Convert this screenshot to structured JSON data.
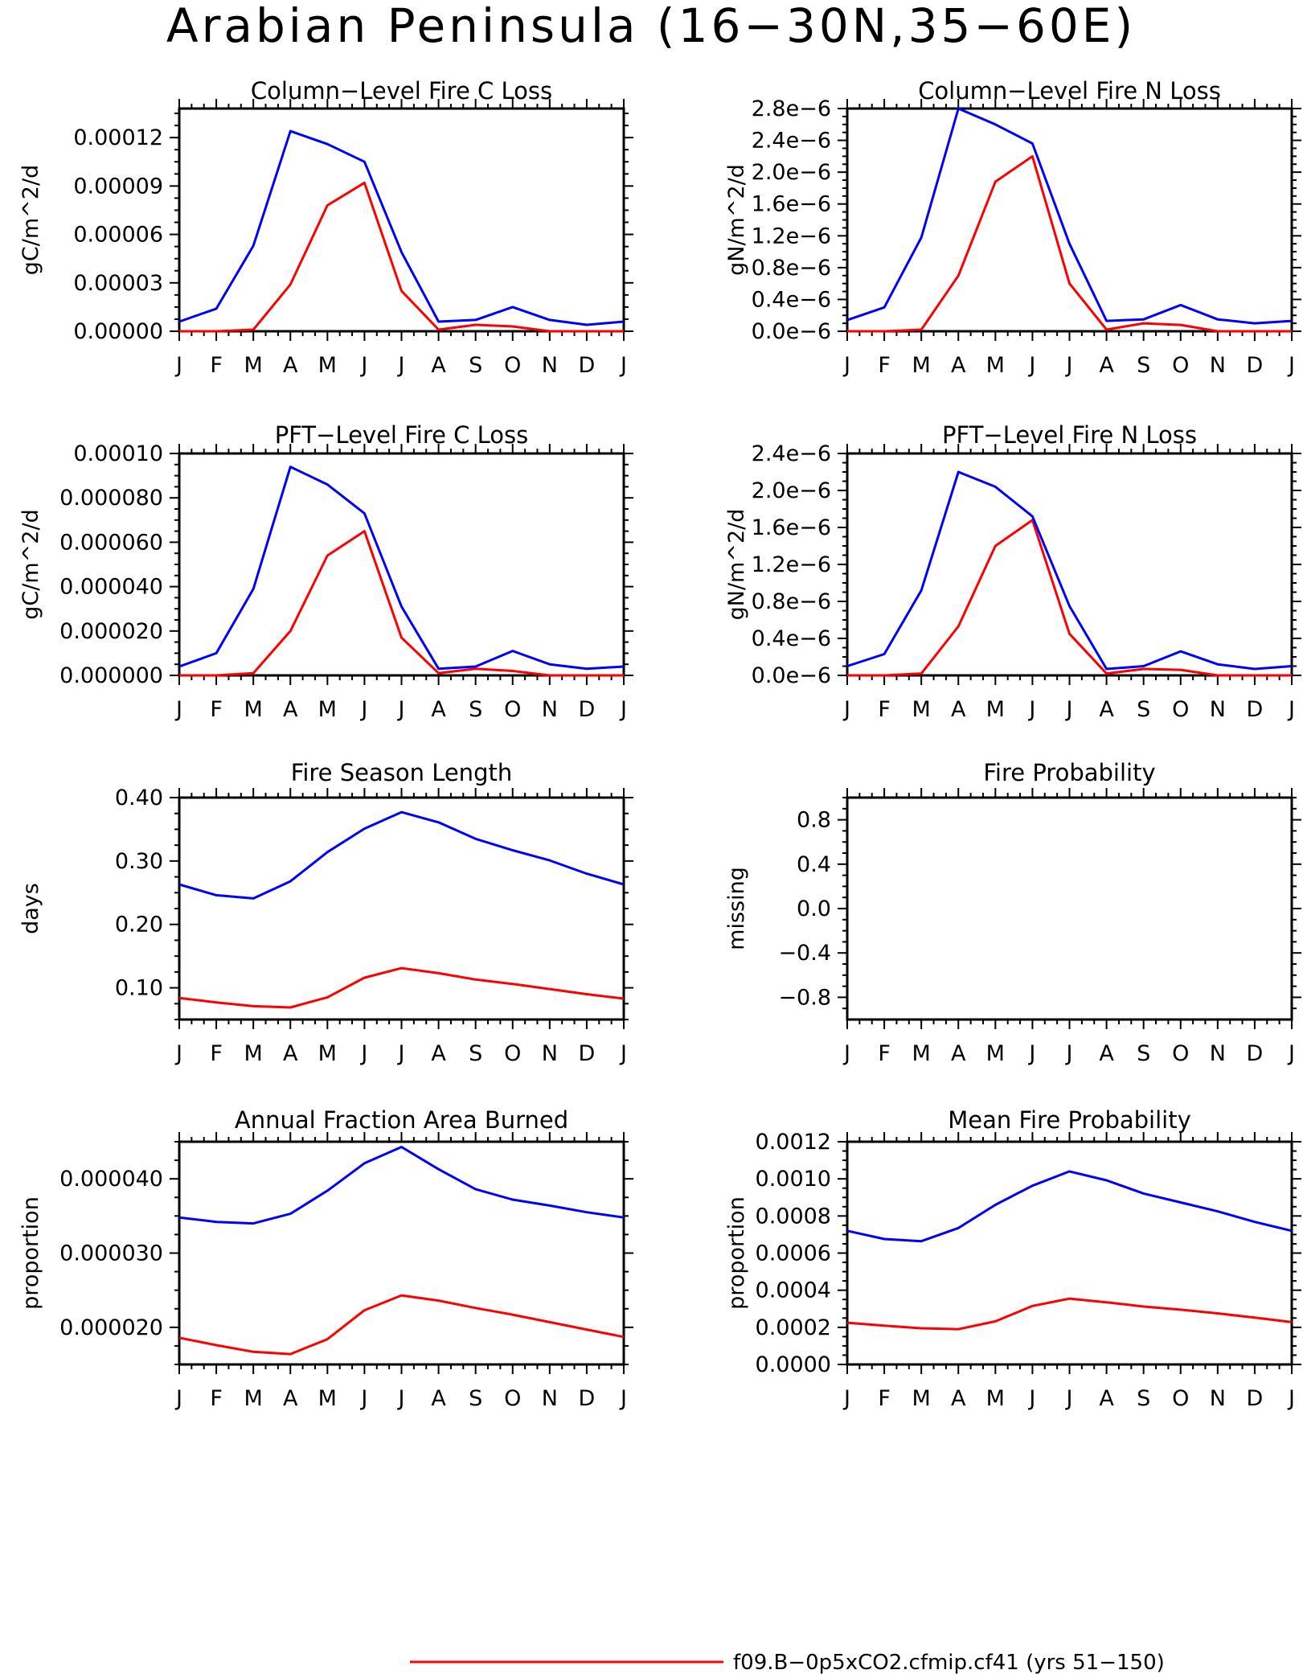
{
  "figure_title": "Arabian Peninsula (16−30N,35−60E)",
  "months": [
    "J",
    "F",
    "M",
    "A",
    "M",
    "J",
    "J",
    "A",
    "S",
    "O",
    "N",
    "D",
    "J"
  ],
  "colors": {
    "series1": "#ff0000",
    "series2": "#0000ff"
  },
  "legend": [
    {
      "label": "f09.B−0p5xCO2.cfmip.cf41 (yrs 51−150)",
      "color": "#ff0000"
    }
  ],
  "chart_data": [
    {
      "type": "line",
      "title": "Column−Level Fire C Loss",
      "ylabel": "gC/m^2/d",
      "ylim": [
        0,
        0.000138
      ],
      "yticks": [
        0,
        3e-05,
        6e-05,
        9e-05,
        0.00012
      ],
      "ytick_labels": [
        "0.00000",
        "0.00003",
        "0.00006",
        "0.00009",
        "0.00012"
      ],
      "x": [
        "J",
        "F",
        "M",
        "A",
        "M",
        "J",
        "J",
        "A",
        "S",
        "O",
        "N",
        "D",
        "J"
      ],
      "series": [
        {
          "color": "#ff0000",
          "values": [
            0.0,
            0.0,
            1e-06,
            2.9e-05,
            7.8e-05,
            9.2e-05,
            2.5e-05,
            1e-06,
            4e-06,
            3e-06,
            0.0,
            0.0,
            0.0
          ]
        },
        {
          "color": "#0000ff",
          "values": [
            6e-06,
            1.4e-05,
            5.3e-05,
            0.000124,
            0.000116,
            0.000105,
            4.9e-05,
            6e-06,
            7e-06,
            1.5e-05,
            7e-06,
            4e-06,
            6e-06
          ]
        }
      ]
    },
    {
      "type": "line",
      "title": "Column−Level Fire N Loss",
      "ylabel": "gN/m^2/d",
      "ylim": [
        0,
        2.8e-06
      ],
      "yticks": [
        0,
        4e-07,
        8e-07,
        1.2e-06,
        1.6e-06,
        2e-06,
        2.4e-06,
        2.8e-06
      ],
      "ytick_labels": [
        "0.0e−6",
        "0.4e−6",
        "0.8e−6",
        "1.2e−6",
        "1.6e−6",
        "2.0e−6",
        "2.4e−6",
        "2.8e−6"
      ],
      "x": [
        "J",
        "F",
        "M",
        "A",
        "M",
        "J",
        "J",
        "A",
        "S",
        "O",
        "N",
        "D",
        "J"
      ],
      "series": [
        {
          "color": "#ff0000",
          "values": [
            0.0,
            0.0,
            2e-08,
            7e-07,
            1.88e-06,
            2.2e-06,
            6e-07,
            2e-08,
            1e-07,
            8e-08,
            0.0,
            0.0,
            0.0
          ]
        },
        {
          "color": "#0000ff",
          "values": [
            1.4e-07,
            3e-07,
            1.18e-06,
            2.8e-06,
            2.6e-06,
            2.36e-06,
            1.1e-06,
            1.3e-07,
            1.5e-07,
            3.3e-07,
            1.5e-07,
            1e-07,
            1.3e-07
          ]
        }
      ]
    },
    {
      "type": "line",
      "title": "PFT−Level Fire C Loss",
      "ylabel": "gC/m^2/d",
      "ylim": [
        0,
        0.0001
      ],
      "yticks": [
        0,
        2e-05,
        4e-05,
        6e-05,
        8e-05,
        0.0001
      ],
      "ytick_labels": [
        "0.000000",
        "0.000020",
        "0.000040",
        "0.000060",
        "0.000080",
        "0.00010"
      ],
      "x": [
        "J",
        "F",
        "M",
        "A",
        "M",
        "J",
        "J",
        "A",
        "S",
        "O",
        "N",
        "D",
        "J"
      ],
      "series": [
        {
          "color": "#ff0000",
          "values": [
            0.0,
            0.0,
            1e-06,
            2e-05,
            5.4e-05,
            6.5e-05,
            1.7e-05,
            1e-06,
            3e-06,
            2e-06,
            0.0,
            0.0,
            0.0
          ]
        },
        {
          "color": "#0000ff",
          "values": [
            4e-06,
            1e-05,
            3.9e-05,
            9.4e-05,
            8.6e-05,
            7.3e-05,
            3.1e-05,
            3e-06,
            4e-06,
            1.1e-05,
            5e-06,
            3e-06,
            4e-06
          ]
        }
      ]
    },
    {
      "type": "line",
      "title": "PFT−Level Fire N Loss",
      "ylabel": "gN/m^2/d",
      "ylim": [
        0,
        2.4e-06
      ],
      "yticks": [
        0,
        4e-07,
        8e-07,
        1.2e-06,
        1.6e-06,
        2e-06,
        2.4e-06
      ],
      "ytick_labels": [
        "0.0e−6",
        "0.4e−6",
        "0.8e−6",
        "1.2e−6",
        "1.6e−6",
        "2.0e−6",
        "2.4e−6"
      ],
      "x": [
        "J",
        "F",
        "M",
        "A",
        "M",
        "J",
        "J",
        "A",
        "S",
        "O",
        "N",
        "D",
        "J"
      ],
      "series": [
        {
          "color": "#ff0000",
          "values": [
            0.0,
            0.0,
            2e-08,
            5.3e-07,
            1.4e-06,
            1.68e-06,
            4.5e-07,
            2e-08,
            7e-08,
            6e-08,
            0.0,
            0.0,
            0.0
          ]
        },
        {
          "color": "#0000ff",
          "values": [
            1e-07,
            2.3e-07,
            9.2e-07,
            2.2e-06,
            2.04e-06,
            1.72e-06,
            7.5e-07,
            7e-08,
            1e-07,
            2.6e-07,
            1.2e-07,
            7e-08,
            1e-07
          ]
        }
      ]
    },
    {
      "type": "line",
      "title": "Fire Season Length",
      "ylabel": "days",
      "ylim": [
        0.05,
        0.4
      ],
      "yticks": [
        0.1,
        0.2,
        0.3,
        0.4
      ],
      "ytick_labels": [
        "0.10",
        "0.20",
        "0.30",
        "0.40"
      ],
      "x": [
        "J",
        "F",
        "M",
        "A",
        "M",
        "J",
        "J",
        "A",
        "S",
        "O",
        "N",
        "D",
        "J"
      ],
      "series": [
        {
          "color": "#ff0000",
          "values": [
            0.084,
            0.077,
            0.071,
            0.069,
            0.085,
            0.116,
            0.131,
            0.123,
            0.113,
            0.106,
            0.098,
            0.09,
            0.083
          ]
        },
        {
          "color": "#0000ff",
          "values": [
            0.263,
            0.246,
            0.241,
            0.268,
            0.314,
            0.351,
            0.377,
            0.361,
            0.335,
            0.317,
            0.301,
            0.28,
            0.263
          ]
        }
      ]
    },
    {
      "type": "line",
      "title": "Fire Probability",
      "ylabel": "missing",
      "ylim": [
        -1.0,
        1.0
      ],
      "yticks": [
        -0.8,
        -0.4,
        0.0,
        0.4,
        0.8
      ],
      "ytick_labels": [
        "−0.8",
        "−0.4",
        "0.0",
        "0.4",
        "0.8"
      ],
      "x": [
        "J",
        "F",
        "M",
        "A",
        "M",
        "J",
        "J",
        "A",
        "S",
        "O",
        "N",
        "D",
        "J"
      ],
      "series": []
    },
    {
      "type": "line",
      "title": "Annual Fraction Area Burned",
      "ylabel": "proportion",
      "ylim": [
        1.5e-05,
        4.5e-05
      ],
      "yticks": [
        2e-05,
        3e-05,
        4e-05
      ],
      "ytick_labels": [
        "0.000020",
        "0.000030",
        "0.000040"
      ],
      "x": [
        "J",
        "F",
        "M",
        "A",
        "M",
        "J",
        "J",
        "A",
        "S",
        "O",
        "N",
        "D",
        "J"
      ],
      "series": [
        {
          "color": "#ff0000",
          "values": [
            1.86e-05,
            1.76e-05,
            1.67e-05,
            1.64e-05,
            1.84e-05,
            2.23e-05,
            2.43e-05,
            2.36e-05,
            2.26e-05,
            2.17e-05,
            2.07e-05,
            1.97e-05,
            1.87e-05
          ]
        },
        {
          "color": "#0000ff",
          "values": [
            3.48e-05,
            3.42e-05,
            3.4e-05,
            3.53e-05,
            3.84e-05,
            4.21e-05,
            4.43e-05,
            4.13e-05,
            3.86e-05,
            3.72e-05,
            3.64e-05,
            3.55e-05,
            3.48e-05
          ]
        }
      ]
    },
    {
      "type": "line",
      "title": "Mean Fire Probability",
      "ylabel": "proportion",
      "ylim": [
        0,
        0.0012
      ],
      "yticks": [
        0,
        0.0002,
        0.0004,
        0.0006,
        0.0008,
        0.001,
        0.0012
      ],
      "ytick_labels": [
        "0.0000",
        "0.0002",
        "0.0004",
        "0.0006",
        "0.0008",
        "0.0010",
        "0.0012"
      ],
      "x": [
        "J",
        "F",
        "M",
        "A",
        "M",
        "J",
        "J",
        "A",
        "S",
        "O",
        "N",
        "D",
        "J"
      ],
      "series": [
        {
          "color": "#ff0000",
          "values": [
            0.000225,
            0.000209,
            0.000195,
            0.00019,
            0.000232,
            0.000315,
            0.000355,
            0.000335,
            0.000312,
            0.000295,
            0.000275,
            0.000252,
            0.000228
          ]
        },
        {
          "color": "#0000ff",
          "values": [
            0.00072,
            0.000676,
            0.000664,
            0.000735,
            0.00086,
            0.000963,
            0.00104,
            0.000992,
            0.000921,
            0.000873,
            0.000825,
            0.000768,
            0.00072
          ]
        }
      ]
    }
  ]
}
